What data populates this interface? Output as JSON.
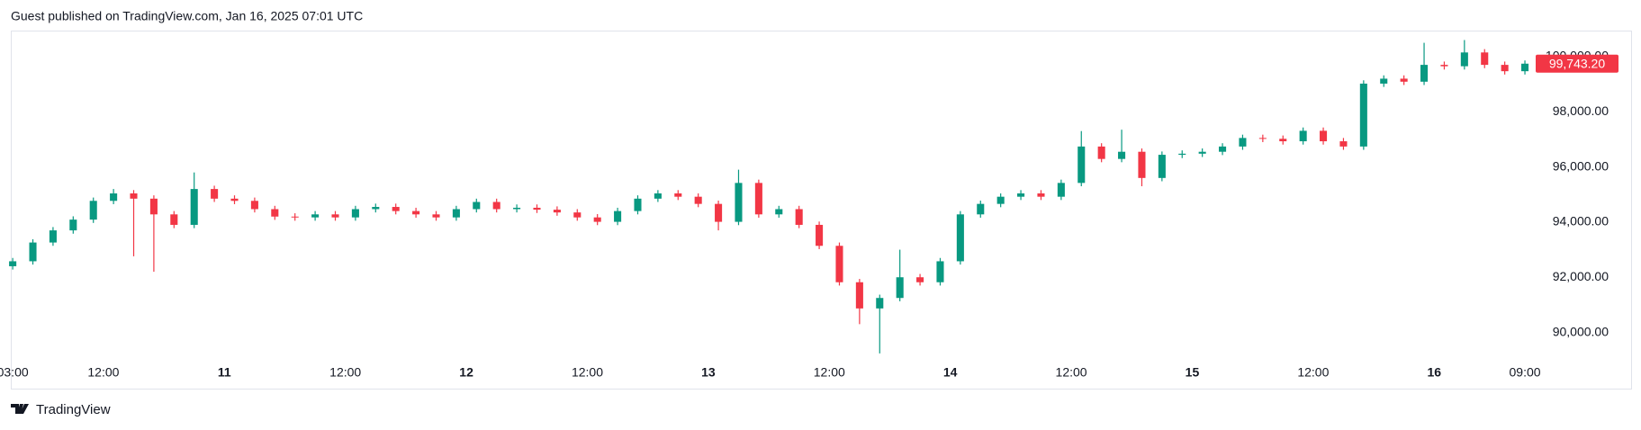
{
  "header": "Guest published on TradingView.com, Jan 16, 2025 07:01 UTC",
  "footer": "TradingView",
  "chart_data": {
    "type": "candlestick",
    "up_color": "#089981",
    "down_color": "#f23645",
    "open": [
      92400,
      92580,
      93260,
      93700,
      94090,
      94770,
      95040,
      94850,
      94280,
      93900,
      95200,
      94850,
      94770,
      94470,
      94200,
      94170,
      94280,
      94170,
      94470,
      94550,
      94400,
      94280,
      94170,
      94470,
      94730,
      94470,
      94520,
      94450,
      94350,
      94170,
      94010,
      94400,
      94850,
      95040,
      94920,
      94660,
      94010,
      95420,
      94280,
      94470,
      93900,
      93140,
      91820,
      90870,
      91250,
      92000,
      91820,
      92580,
      94280,
      94660,
      94920,
      95040,
      94920,
      95420,
      96740,
      96290,
      96550,
      95600,
      96440,
      96480,
      96550,
      96740,
      97050,
      97020,
      96930,
      97310,
      96930,
      96740,
      99020,
      99200,
      99090,
      99700,
      99650,
      100150,
      99700,
      99470
    ],
    "high": [
      92700,
      93380,
      93820,
      94210,
      94890,
      95200,
      95160,
      94970,
      94400,
      95800,
      95320,
      94970,
      94890,
      94590,
      94320,
      94400,
      94400,
      94590,
      94670,
      94670,
      94520,
      94400,
      94590,
      94850,
      94850,
      94640,
      94640,
      94570,
      94470,
      94290,
      94520,
      94970,
      95160,
      95160,
      95040,
      94780,
      95900,
      95540,
      94590,
      94590,
      94020,
      93260,
      91940,
      91370,
      93000,
      92120,
      92700,
      94400,
      94780,
      95040,
      95160,
      95160,
      95540,
      97300,
      96860,
      97350,
      96670,
      96560,
      96600,
      96670,
      96860,
      97170,
      97170,
      97140,
      97430,
      97430,
      97050,
      99140,
      99320,
      99320,
      100500,
      99820,
      100600,
      100270,
      99820,
      99860
    ],
    "low": [
      92280,
      92460,
      93140,
      93580,
      93970,
      94650,
      92760,
      92200,
      93780,
      93780,
      94730,
      94650,
      94350,
      94080,
      94050,
      94050,
      94050,
      94050,
      94350,
      94280,
      94160,
      94050,
      94050,
      94350,
      94350,
      94350,
      94330,
      94230,
      94050,
      93890,
      93890,
      94280,
      94730,
      94800,
      94540,
      93700,
      93890,
      94160,
      94160,
      93780,
      93020,
      91700,
      90300,
      89240,
      91130,
      91700,
      91700,
      92460,
      94160,
      94540,
      94800,
      94800,
      94800,
      95300,
      96170,
      96170,
      95300,
      95480,
      96320,
      96360,
      96430,
      96620,
      96900,
      96810,
      96810,
      96810,
      96620,
      96620,
      98900,
      98970,
      98970,
      99530,
      99530,
      99580,
      99350,
      99350
    ],
    "close": [
      92580,
      93260,
      93700,
      94090,
      94770,
      95040,
      94850,
      94280,
      93900,
      95200,
      94850,
      94770,
      94470,
      94200,
      94170,
      94280,
      94170,
      94470,
      94550,
      94400,
      94280,
      94170,
      94470,
      94730,
      94470,
      94520,
      94450,
      94350,
      94170,
      94010,
      94400,
      94850,
      95040,
      94920,
      94660,
      94010,
      95420,
      94280,
      94470,
      93900,
      93140,
      91820,
      90870,
      91250,
      92000,
      91820,
      92580,
      94280,
      94660,
      94920,
      95040,
      94920,
      95420,
      96740,
      96290,
      96550,
      95600,
      96440,
      96480,
      96550,
      96740,
      97050,
      97020,
      96930,
      97310,
      96930,
      96740,
      99020,
      99200,
      99090,
      99700,
      99650,
      100150,
      99700,
      99470,
      99743.2
    ],
    "xlim": [
      -0.05,
      75.4
    ],
    "xticks": [
      {
        "value": 0,
        "label": "03:00"
      },
      {
        "value": 4.5,
        "label": "12:00"
      },
      {
        "value": 10.5,
        "label": "11"
      },
      {
        "value": 16.5,
        "label": "12:00"
      },
      {
        "value": 22.5,
        "label": "12"
      },
      {
        "value": 28.5,
        "label": "12:00"
      },
      {
        "value": 34.5,
        "label": "13"
      },
      {
        "value": 40.5,
        "label": "12:00"
      },
      {
        "value": 46.5,
        "label": "14"
      },
      {
        "value": 52.5,
        "label": "12:00"
      },
      {
        "value": 58.5,
        "label": "15"
      },
      {
        "value": 64.5,
        "label": "12:00"
      },
      {
        "value": 70.5,
        "label": "16"
      },
      {
        "value": 75,
        "label": "09:00"
      }
    ],
    "ylim": [
      89170,
      100910
    ],
    "yticks": [
      {
        "value": 90000,
        "label": "90,000.00"
      },
      {
        "value": 92000,
        "label": "92,000.00"
      },
      {
        "value": 94000,
        "label": "94,000.00"
      },
      {
        "value": 96000,
        "label": "96,000.00"
      },
      {
        "value": 98000,
        "label": "98,000.00"
      },
      {
        "value": 100000,
        "label": "100,000.00"
      }
    ],
    "price_label": {
      "value": 99743.2,
      "label": "99,743.20"
    },
    "price_label_color": "#f23645"
  }
}
